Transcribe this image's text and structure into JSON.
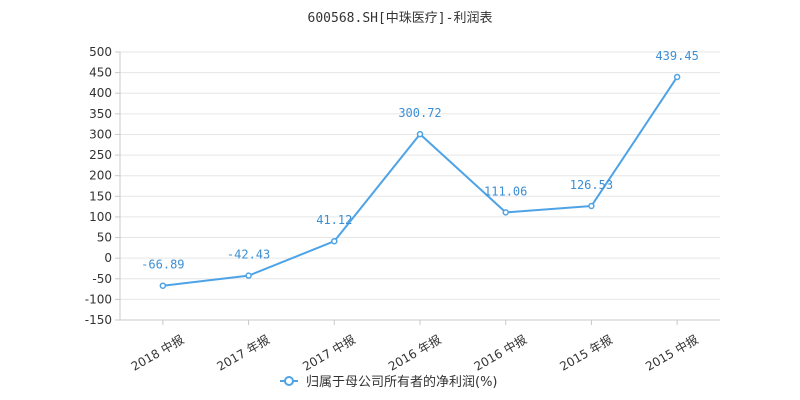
{
  "chart_data": {
    "type": "line",
    "title": "600568.SH[中珠医疗]-利润表",
    "categories": [
      "2018 中报",
      "2017 年报",
      "2017 中报",
      "2016 年报",
      "2016 中报",
      "2015 年报",
      "2015 中报"
    ],
    "series": [
      {
        "name": "归属于母公司所有者的净利润(%)",
        "values": [
          -66.89,
          -42.43,
          41.12,
          300.72,
          111.06,
          126.53,
          439.45
        ],
        "color": "#4ea3e6"
      }
    ],
    "data_labels": [
      "-66.89",
      "-42.43",
      "41.12",
      "300.72",
      "111.06",
      "126.53",
      "439.45"
    ],
    "ylim": [
      -150,
      500
    ],
    "yticks": [
      500,
      450,
      400,
      350,
      300,
      250,
      200,
      150,
      100,
      50,
      0,
      -50,
      -100,
      -150
    ],
    "grid": true,
    "legend": "bottom-center"
  }
}
